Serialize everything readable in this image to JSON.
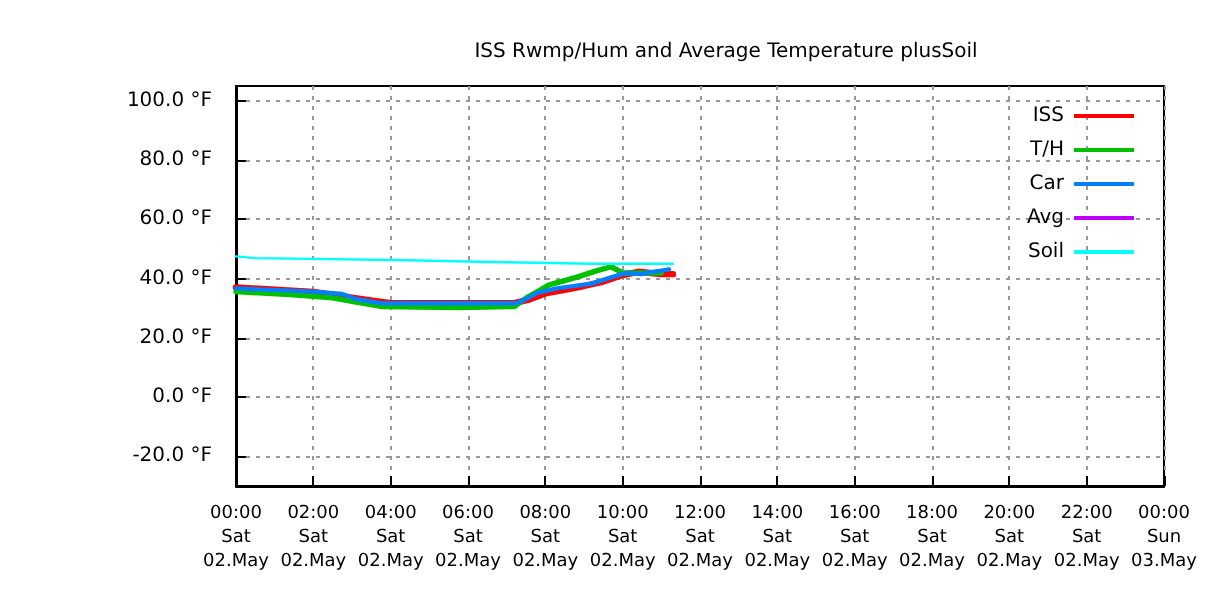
{
  "chart_data": {
    "type": "line",
    "title": "ISS Rwmp/Hum and Average Temperature plusSoil",
    "xlim": [
      "--05-02T00:00",
      "--05-03T00:00"
    ],
    "xticks": [
      {
        "value": "--05-02T00:00",
        "label": "00:00\nSat\n02.May"
      },
      {
        "value": "--05-02T02:00",
        "label": "02:00\nSat\n02.May"
      },
      {
        "value": "--05-02T04:00",
        "label": "04:00\nSat\n02.May"
      },
      {
        "value": "--05-02T06:00",
        "label": "06:00\nSat\n02.May"
      },
      {
        "value": "--05-02T08:00",
        "label": "08:00\nSat\n02.May"
      },
      {
        "value": "--05-02T10:00",
        "label": "10:00\nSat\n02.May"
      },
      {
        "value": "--05-02T12:00",
        "label": "12:00\nSat\n02.May"
      },
      {
        "value": "--05-02T14:00",
        "label": "14:00\nSat\n02.May"
      },
      {
        "value": "--05-02T16:00",
        "label": "16:00\nSat\n02.May"
      },
      {
        "value": "--05-02T18:00",
        "label": "18:00\nSat\n02.May"
      },
      {
        "value": "--05-02T20:00",
        "label": "20:00\nSat\n02.May"
      },
      {
        "value": "--05-02T22:00",
        "label": "22:00\nSat\n02.May"
      },
      {
        "value": "--05-03T00:00",
        "label": "00:00\nSun\n03.May"
      }
    ],
    "ylim": [
      -30,
      105
    ],
    "yticks": [
      {
        "value": -20,
        "label": "-20.0 °F"
      },
      {
        "value": 0,
        "label": "0.0 °F"
      },
      {
        "value": 20,
        "label": "20.0 °F"
      },
      {
        "value": 40,
        "label": "40.0 °F"
      },
      {
        "value": 60,
        "label": "60.0 °F"
      },
      {
        "value": 80,
        "label": "80.0 °F"
      },
      {
        "value": 100,
        "label": "100.0 °F"
      }
    ],
    "grid": true,
    "legend": "top right",
    "marker": "none",
    "line_style": "solid",
    "series": [
      {
        "name": "ISS",
        "color": "#ff0000",
        "x": [
          "--05-02T00:00",
          "--05-02T02:00",
          "--05-02T03:18",
          "--05-02T04:00",
          "--05-02T07:12",
          "--05-02T07:36",
          "--05-02T08:00",
          "--05-02T08:30",
          "--05-02T09:00",
          "--05-02T09:30",
          "--05-02T10:00",
          "--05-02T10:24",
          "--05-02T11:00",
          "--05-02T11:18"
        ],
        "values": [
          37,
          35.5,
          33,
          31.7,
          31.7,
          33,
          35,
          36.2,
          37.5,
          39,
          41.2,
          42.3,
          41.5,
          41.5
        ]
      },
      {
        "name": "T/H",
        "color": "#00c000",
        "x": [
          "--05-02T00:00",
          "--05-02T01:24",
          "--05-02T02:00",
          "--05-02T02:30",
          "--05-02T03:00",
          "--05-02T03:45",
          "--05-02T05:45",
          "--05-02T07:12",
          "--05-02T07:30",
          "--05-02T07:48",
          "--05-02T08:06",
          "--05-02T08:48",
          "--05-02T09:18",
          "--05-02T09:42",
          "--05-02T10:00",
          "--05-02T11:00"
        ],
        "values": [
          35.6,
          34.6,
          34,
          33.5,
          32.3,
          30.6,
          30.2,
          30.6,
          33.4,
          35.6,
          37.9,
          40.4,
          42.5,
          44,
          41.9,
          41.9
        ]
      },
      {
        "name": "Car",
        "color": "#0080ff",
        "x": [
          "--05-02T00:00",
          "--05-02T02:00",
          "--05-02T02:45",
          "--05-02T03:06",
          "--05-02T03:45",
          "--05-02T07:15",
          "--05-02T07:30",
          "--05-02T07:48",
          "--05-02T08:18",
          "--05-02T09:12",
          "--05-02T09:42",
          "--05-02T10:06",
          "--05-02T10:30",
          "--05-02T10:36",
          "--05-02T11:00",
          "--05-02T11:12"
        ],
        "values": [
          36.7,
          35.6,
          34.8,
          33.1,
          31.7,
          31.7,
          33.1,
          35.2,
          36.7,
          38.3,
          40.4,
          41.9,
          41.5,
          41.9,
          42.7,
          43.1
        ]
      },
      {
        "name": "Avg",
        "color": "#c000ff"
      },
      {
        "name": "Soil",
        "color": "#00ffff",
        "x": [
          "--05-02T00:00",
          "--05-02T00:30",
          "--05-02T04:06",
          "--05-02T06:39",
          "--05-02T09:12",
          "--05-02T11:18"
        ],
        "values": [
          47.5,
          46.9,
          46.3,
          45.6,
          45,
          45
        ]
      }
    ]
  }
}
